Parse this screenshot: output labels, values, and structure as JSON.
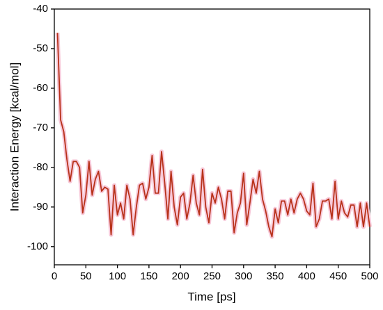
{
  "chart_data": {
    "type": "line",
    "x_label": "Time [ps]",
    "y_label": "Interaction Energy [kcal/mol]",
    "x": [
      5,
      10,
      15,
      20,
      25,
      30,
      35,
      40,
      45,
      50,
      55,
      60,
      65,
      70,
      75,
      80,
      85,
      90,
      95,
      100,
      105,
      110,
      115,
      120,
      125,
      130,
      135,
      140,
      145,
      150,
      155,
      160,
      165,
      170,
      175,
      180,
      185,
      190,
      195,
      200,
      205,
      210,
      215,
      220,
      225,
      230,
      235,
      240,
      245,
      250,
      255,
      260,
      265,
      270,
      275,
      280,
      285,
      290,
      295,
      300,
      305,
      310,
      315,
      320,
      325,
      330,
      335,
      340,
      345,
      350,
      355,
      360,
      365,
      370,
      375,
      380,
      385,
      390,
      395,
      400,
      405,
      410,
      415,
      420,
      425,
      430,
      435,
      440,
      445,
      450,
      455,
      460,
      465,
      470,
      475,
      480,
      485,
      490,
      495,
      500
    ],
    "series": [
      {
        "color": "#b8321a",
        "values": [
          -46,
          -68,
          -71,
          -78,
          -83.5,
          -78.5,
          -78.5,
          -80,
          -91.5,
          -87,
          -78.5,
          -87,
          -83,
          -81,
          -86,
          -85,
          -85.5,
          -97,
          -84.5,
          -92,
          -89,
          -93,
          -84.5,
          -88,
          -97,
          -90,
          -84.5,
          -84,
          -88,
          -85,
          -77,
          -86.5,
          -86.5,
          -76,
          -84,
          -93,
          -81,
          -90,
          -94.5,
          -87.5,
          -86.5,
          -93,
          -89,
          -82,
          -89,
          -92,
          -80.5,
          -90,
          -94,
          -86.5,
          -89,
          -85,
          -88,
          -93,
          -86,
          -86,
          -96.5,
          -91.5,
          -89,
          -81.5,
          -94.5,
          -89,
          -83,
          -86.5,
          -81,
          -88,
          -91,
          -95,
          -97.5,
          -90.5,
          -94,
          -88.5,
          -88.5,
          -92,
          -88,
          -91.5,
          -88,
          -86.5,
          -88,
          -91,
          -92,
          -84,
          -95,
          -93,
          -88.5,
          -88.5,
          -88,
          -93,
          -83.5,
          -93,
          -88.5,
          -91.5,
          -92.5,
          -89.5,
          -89.5,
          -95,
          -89,
          -95,
          -89,
          -95
        ]
      }
    ],
    "xlim": [
      0,
      500
    ],
    "ylim": [
      -104.6,
      -40
    ],
    "xticks": [
      0,
      50,
      100,
      150,
      200,
      250,
      300,
      350,
      400,
      450,
      500
    ],
    "yticks": [
      -100,
      -90,
      -80,
      -70,
      -60,
      -50,
      -40
    ]
  }
}
